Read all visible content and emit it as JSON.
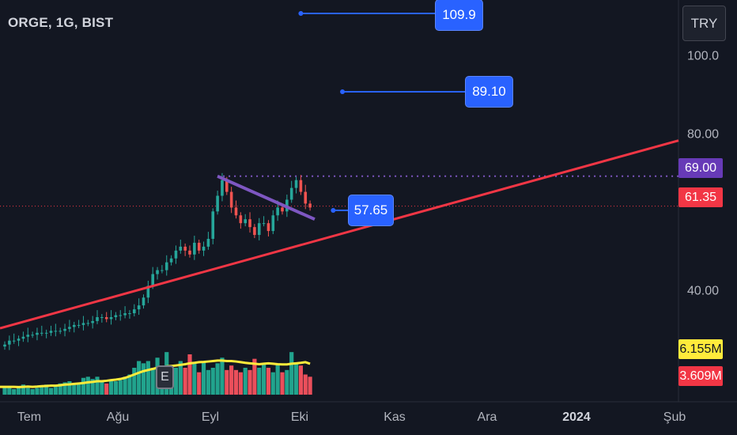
{
  "header": {
    "symbol_title": "ORGE, 1G, BIST"
  },
  "toolbar": {
    "currency_label": "TRY"
  },
  "callouts": {
    "target_high": "109.9",
    "target_mid": "89.10",
    "support": "57.65"
  },
  "price_badges": {
    "resistance": {
      "label": "69.00",
      "color": "#673ab7"
    },
    "last_price": {
      "label": "61.35",
      "color": "#f23645"
    },
    "volume_ma": {
      "label": "6.155M",
      "color": "#ffeb3b"
    },
    "volume": {
      "label": "3.609M",
      "color": "#f23645"
    }
  },
  "earnings_marker": {
    "label": "E"
  },
  "colors": {
    "background": "#131722",
    "up": "#26a69a",
    "down": "#ef5350",
    "trendline": "#f23645",
    "wedge_line": "#7e57c2",
    "callout": "#2962ff",
    "volume_ma": "#ffeb3b"
  },
  "chart_data": {
    "type": "candlestick",
    "title": "ORGE, 1G, BIST",
    "currency": "TRY",
    "x_ticks": [
      {
        "label": "Tem",
        "bold": false
      },
      {
        "label": "Ağu",
        "bold": false
      },
      {
        "label": "Eyl",
        "bold": false
      },
      {
        "label": "Eki",
        "bold": false
      },
      {
        "label": "Kas",
        "bold": false
      },
      {
        "label": "Ara",
        "bold": false
      },
      {
        "label": "2024",
        "bold": true
      },
      {
        "label": "Şub",
        "bold": false
      }
    ],
    "y_ticks": [
      "100.0",
      "80.00",
      "40.00"
    ],
    "y_tick_values": [
      100,
      80,
      40
    ],
    "ylim": [
      13,
      114
    ],
    "closes": [
      26,
      27,
      27,
      27.5,
      28,
      28.5,
      28.5,
      29,
      29,
      29,
      29.5,
      29.5,
      29.5,
      30,
      30.5,
      31,
      31,
      31.5,
      31.5,
      32,
      33,
      33,
      32.5,
      33,
      33.5,
      33.5,
      34,
      34,
      35,
      36,
      38,
      41,
      44,
      45,
      45,
      47,
      48,
      50,
      51,
      50,
      49,
      52,
      50,
      51,
      53,
      60,
      64,
      68,
      65,
      61,
      59,
      57,
      58,
      56,
      54,
      57,
      57,
      55,
      59,
      61,
      60,
      63,
      66,
      68,
      65,
      62,
      61
    ],
    "volume_bars": [
      3,
      3,
      2.5,
      3,
      4.5,
      3,
      2.5,
      3,
      3.5,
      4.5,
      3,
      3.5,
      5,
      5.5,
      6,
      4.5,
      5,
      7.5,
      8,
      7,
      8,
      6.5,
      5,
      6,
      6,
      6.5,
      8,
      9,
      12,
      15,
      14,
      15,
      12,
      16.5,
      9,
      19,
      11,
      12,
      15,
      12,
      18,
      14,
      10,
      15,
      11,
      12,
      14,
      16.5,
      11,
      13,
      11,
      10,
      12,
      11,
      16,
      12,
      14,
      12,
      10,
      14,
      10,
      11,
      19,
      14,
      13,
      9,
      8
    ],
    "volume_ma": [
      3.5,
      3.5,
      3.5,
      3.4,
      3.5,
      3.6,
      3.5,
      3.6,
      3.8,
      3.9,
      4,
      4,
      4.2,
      4.5,
      4.6,
      4.8,
      5,
      5.2,
      5.5,
      5.7,
      6,
      6,
      6.2,
      6.5,
      6.7,
      7,
      7.5,
      8.2,
      9,
      9.8,
      10.5,
      11,
      11.5,
      12,
      12.3,
      12.6,
      12.8,
      13,
      13.3,
      13.6,
      14,
      14.2,
      14.5,
      14.6,
      14.8,
      15,
      15.2,
      15.2,
      15,
      15,
      14.8,
      14.5,
      14.2,
      14,
      13.8,
      13.6,
      13.8,
      14,
      13.8,
      13.6,
      13.5,
      13.5,
      13.8,
      14,
      14.2,
      14.5,
      13.8
    ],
    "volume_ylim": [
      0,
      42
    ],
    "ascending_trendline": {
      "from": {
        "bar": 0,
        "price": 30.5
      },
      "to": {
        "bar": 182,
        "price": 90
      }
    },
    "descending_wedge": {
      "from": {
        "bar": 46,
        "price": 69
      },
      "to": {
        "bar": 67,
        "price": 58
      }
    },
    "resistance_level": {
      "price": 69,
      "from_bar": 46,
      "style": "dotted"
    },
    "last_price_level": {
      "price": 61.35,
      "style": "dotted"
    },
    "callouts": [
      {
        "label": "109.9",
        "price": 111,
        "from_bar": 64
      },
      {
        "label": "89.10",
        "price": 95,
        "from_bar": 73
      },
      {
        "label": "57.65",
        "price": 57.65,
        "from_bar": 71
      }
    ]
  }
}
